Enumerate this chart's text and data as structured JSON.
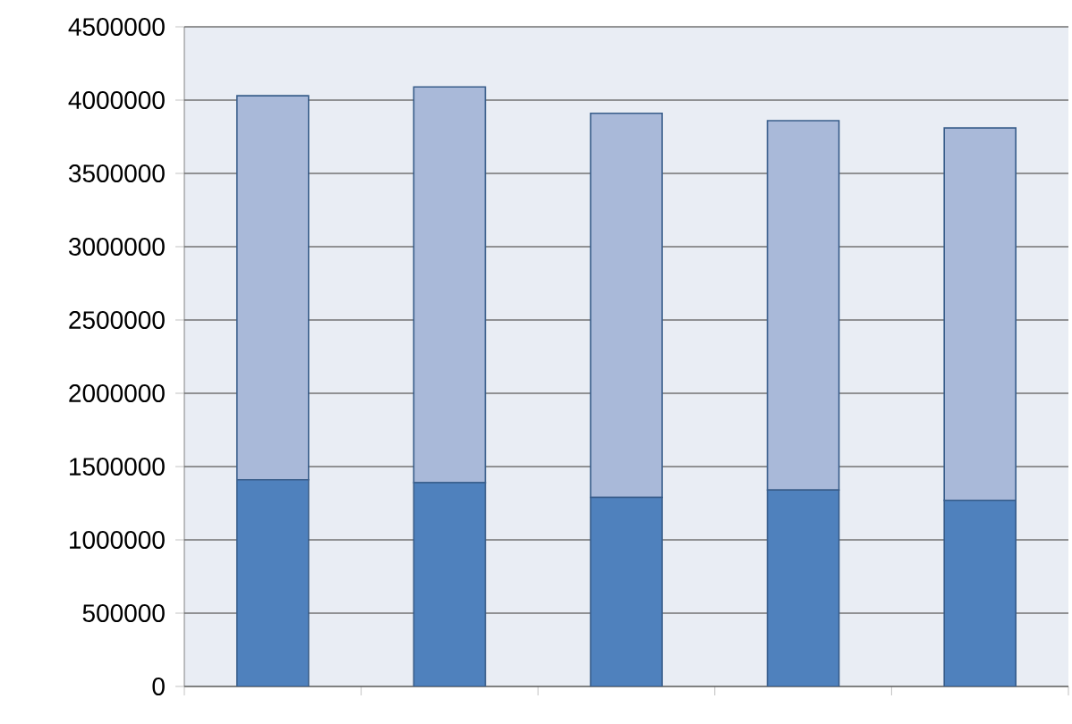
{
  "chart_data": {
    "type": "bar",
    "stacked": true,
    "categories": [
      null,
      null,
      null,
      null,
      null
    ],
    "series": [
      {
        "color": "#4f81bd",
        "values": [
          1410000,
          1390000,
          1290000,
          1340000,
          1270000
        ]
      },
      {
        "color": "#a9b9d9",
        "values": [
          2620000,
          2700000,
          2620000,
          2520000,
          2540000
        ]
      }
    ],
    "ylim": [
      0,
      4500000
    ],
    "yticks": [
      0,
      500000,
      1000000,
      1500000,
      2000000,
      2500000,
      3000000,
      3500000,
      4000000,
      4500000
    ],
    "grid": "y"
  }
}
